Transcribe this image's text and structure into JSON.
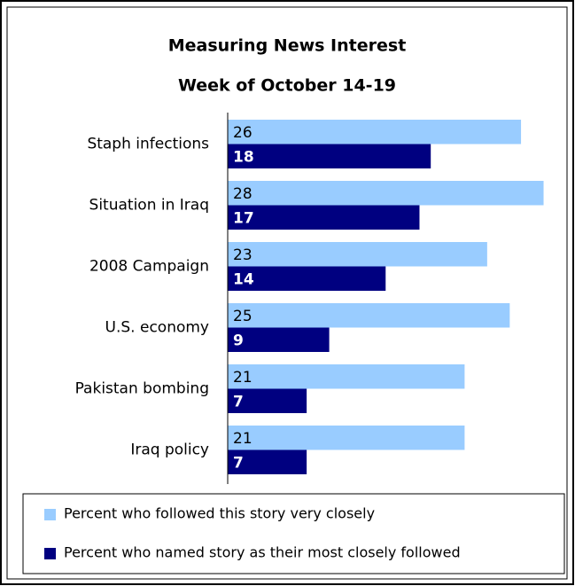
{
  "chart_data": {
    "type": "bar",
    "orientation": "horizontal",
    "title": "Measuring News Interest",
    "subtitle": "Week of October 14-19",
    "categories": [
      "Staph infections",
      "Situation in Iraq",
      "2008 Campaign",
      "U.S. economy",
      "Pakistan bombing",
      "Iraq policy"
    ],
    "series": [
      {
        "name": "Percent who followed this story very closely",
        "color": "#99ccff",
        "values": [
          26,
          28,
          23,
          25,
          21,
          21
        ]
      },
      {
        "name": "Percent who named story as their most closely followed",
        "color": "#000080",
        "values": [
          18,
          17,
          14,
          9,
          7,
          7
        ]
      }
    ],
    "xlim": [
      0,
      30
    ]
  }
}
